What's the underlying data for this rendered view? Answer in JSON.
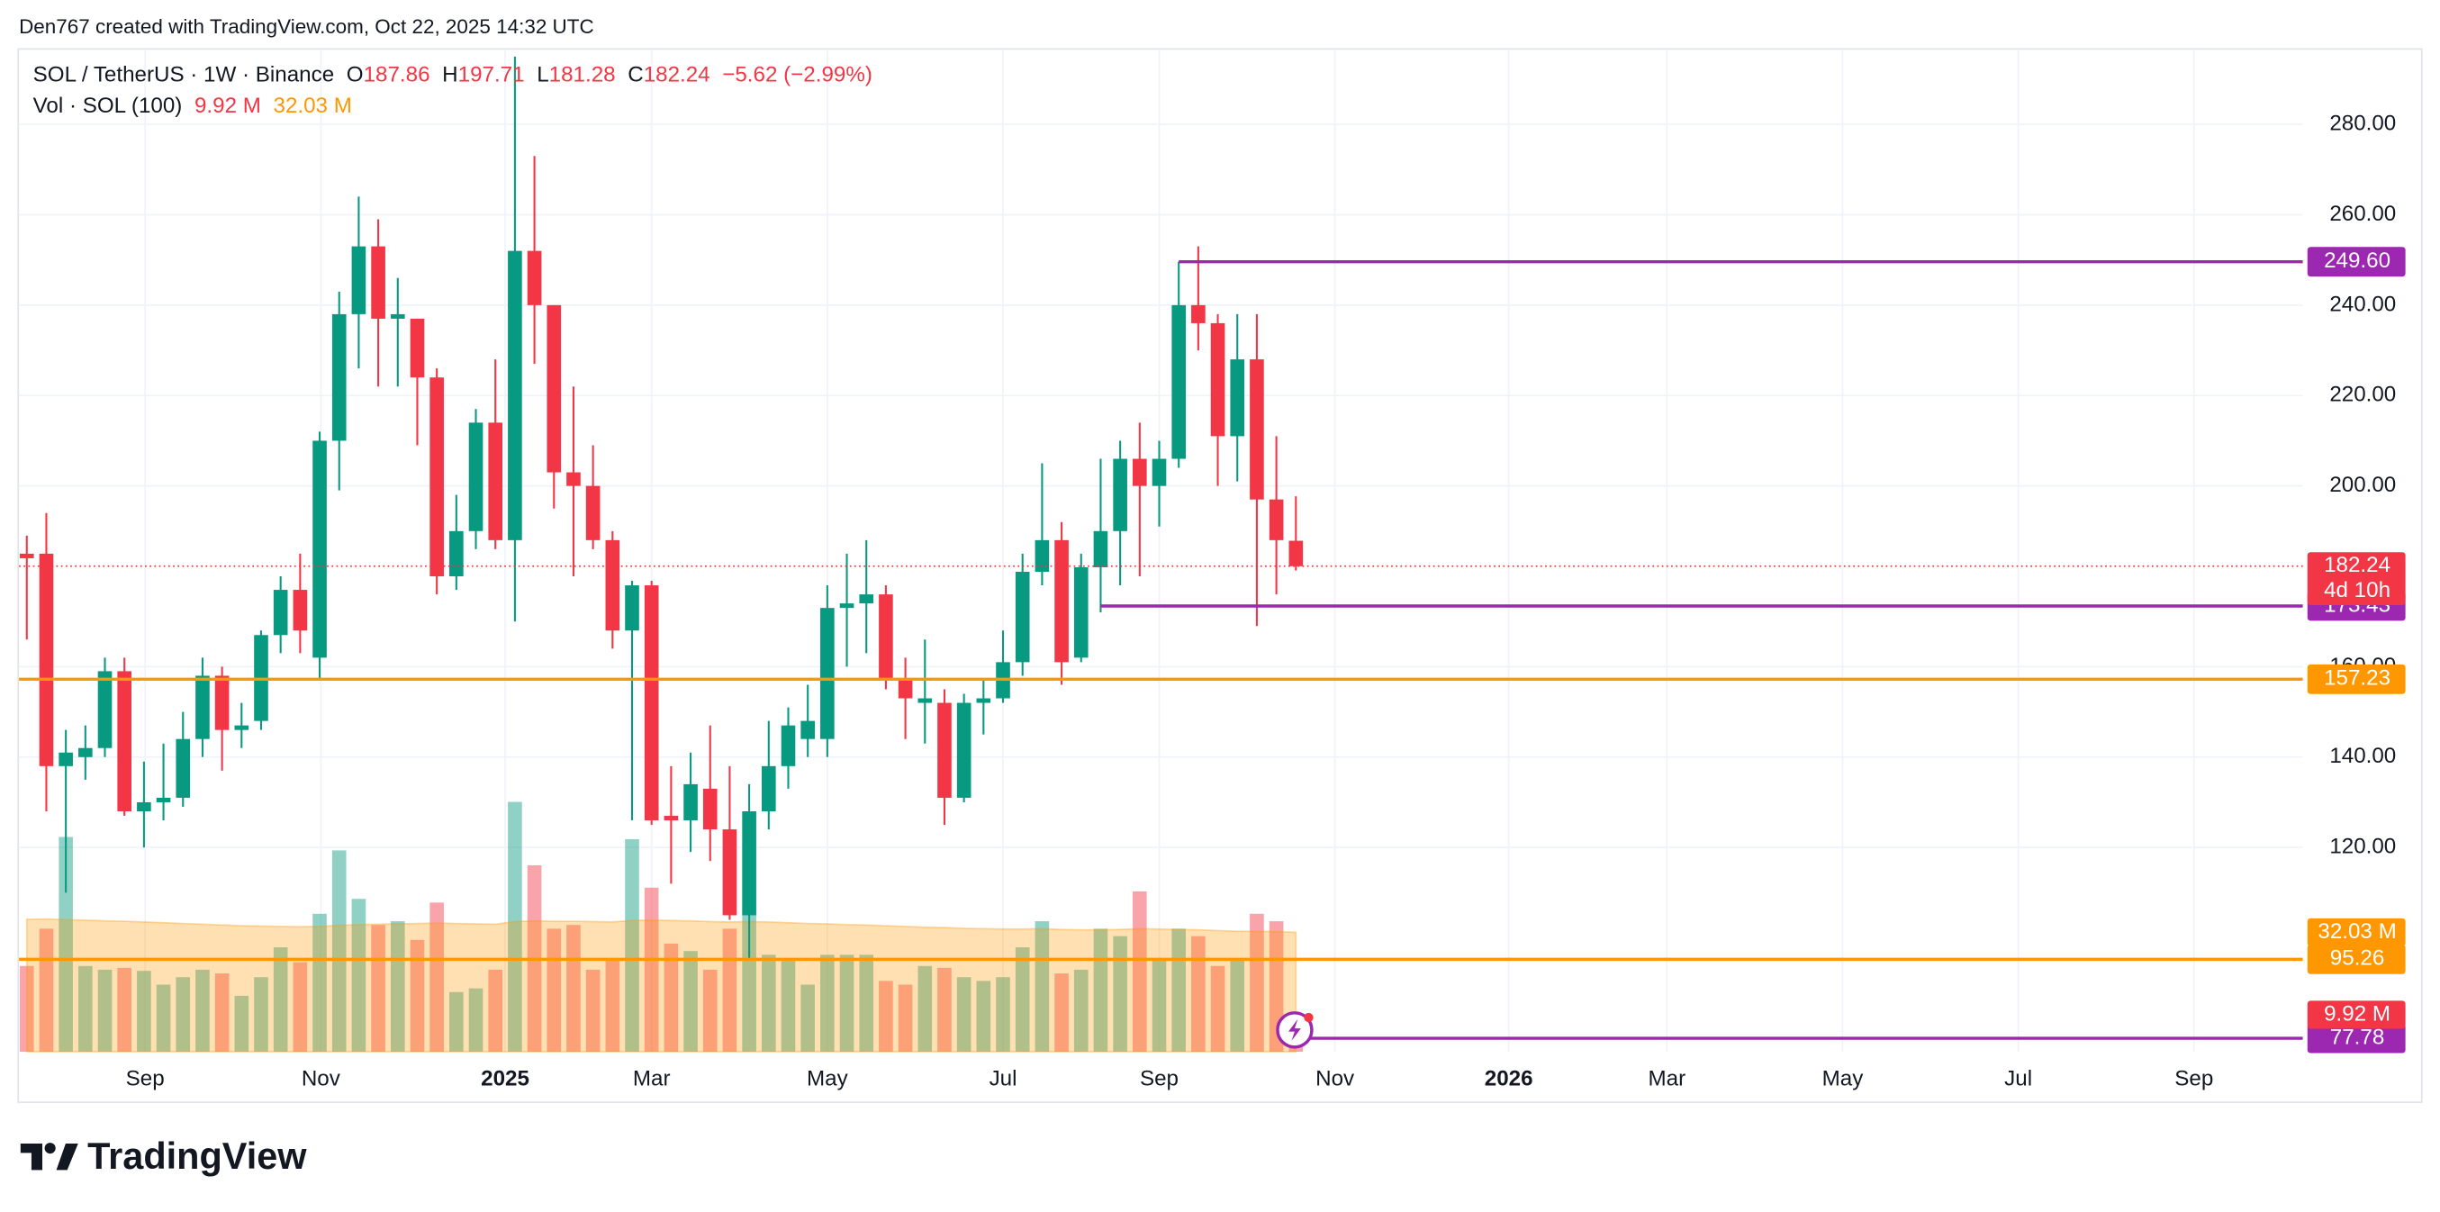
{
  "attribution": "Den767 created with TradingView.com, Oct 22, 2025 14:32 UTC",
  "brand": "TradingView",
  "legend": {
    "symbol": "SOL / TetherUS · 1W · Binance",
    "o_key": "O",
    "o": "187.86",
    "h_key": "H",
    "h": "197.71",
    "l_key": "L",
    "l": "181.28",
    "c_key": "C",
    "c": "182.24",
    "change": "−5.62 (−2.99%)",
    "vol_name": "Vol · SOL (100)",
    "vol": "9.92 M",
    "vol_ma": "32.03 M"
  },
  "chart_data": {
    "type": "candlestick",
    "title": "SOL / TetherUS · 1W · Binance",
    "up_color": "#089981",
    "down_color": "#f23645",
    "open": [
      185,
      185,
      138,
      140,
      142,
      159,
      128,
      130,
      131,
      144,
      158,
      146,
      148,
      167,
      177,
      162,
      210,
      238,
      253,
      237,
      237,
      224,
      180,
      190,
      214,
      188,
      252,
      240,
      203,
      200,
      188,
      168,
      178,
      127,
      126,
      133,
      124,
      105,
      128,
      138,
      144,
      144,
      173,
      174,
      176,
      157,
      152,
      152,
      131,
      152,
      153,
      161,
      181,
      188,
      162,
      182,
      190,
      206,
      200,
      206,
      240,
      236,
      211,
      228,
      197,
      187.86
    ],
    "high": [
      189,
      194,
      146,
      147,
      162,
      162,
      139,
      143,
      150,
      162,
      160,
      152,
      168,
      180,
      185,
      212,
      243,
      264,
      259,
      246,
      237,
      226,
      198,
      217,
      228,
      295,
      273,
      240,
      222,
      209,
      190,
      179,
      179,
      138,
      141,
      147,
      138,
      134,
      148,
      151,
      156,
      178,
      185,
      188,
      178,
      162,
      166,
      155,
      154,
      157,
      168,
      185,
      205,
      192,
      185,
      206,
      210,
      214,
      210,
      249.6,
      253,
      238,
      238,
      238,
      211,
      197.71
    ],
    "low": [
      166,
      128,
      110,
      135,
      140,
      127,
      120,
      126,
      129,
      140,
      137,
      142,
      146,
      163,
      163,
      157,
      199,
      226,
      222,
      222,
      209,
      176,
      177,
      186,
      186,
      170,
      227,
      195,
      180,
      186,
      164,
      126,
      125,
      112,
      119,
      117,
      104,
      95,
      124,
      133,
      140,
      140,
      160,
      163,
      155,
      144,
      143,
      125,
      130,
      145,
      152,
      158,
      178,
      156,
      161,
      172,
      178,
      180,
      191,
      204,
      230,
      200,
      201,
      169,
      176,
      181.28
    ],
    "close": [
      184,
      138,
      141,
      142,
      159,
      128,
      130,
      131,
      144,
      158,
      146,
      147,
      167,
      177,
      168,
      210,
      238,
      253,
      237,
      238,
      224,
      180,
      190,
      214,
      188,
      252,
      240,
      203,
      200,
      188,
      168,
      178,
      126,
      126,
      134,
      124,
      105,
      128,
      138,
      147,
      148,
      173,
      174,
      176,
      157,
      153,
      153,
      131,
      152,
      153,
      161,
      181,
      188,
      161,
      182,
      190,
      206,
      200,
      206,
      240,
      236,
      211,
      228,
      197,
      188,
      182.24
    ],
    "volume": [
      23,
      33,
      57.6,
      23,
      22,
      22.5,
      21.7,
      18,
      20,
      22,
      21,
      15,
      20,
      28,
      24,
      37,
      54,
      41,
      34,
      35,
      30,
      40,
      16,
      17,
      22,
      67,
      50,
      33,
      34,
      22,
      25,
      57,
      44,
      29,
      27,
      22,
      33,
      37,
      26,
      25,
      18,
      26,
      26,
      26,
      19,
      18,
      23,
      22.5,
      20,
      19,
      20,
      28,
      35,
      21,
      22,
      33,
      31,
      43,
      25,
      33,
      31,
      23,
      25,
      37,
      35,
      9.92
    ],
    "volume_last_label": "9.92 M",
    "vol_ma": [
      35.5,
      35.6,
      35.4,
      35.3,
      35.1,
      35.0,
      34.8,
      34.6,
      34.4,
      34.2,
      34.0,
      33.8,
      33.7,
      33.6,
      33.5,
      33.6,
      33.9,
      34.1,
      34.2,
      34.3,
      34.4,
      34.5,
      34.4,
      34.3,
      34.2,
      34.9,
      35.1,
      35.0,
      35.0,
      34.9,
      34.8,
      35.2,
      35.3,
      35.2,
      35.1,
      34.9,
      34.8,
      34.9,
      34.8,
      34.6,
      34.4,
      34.3,
      34.1,
      34.0,
      33.8,
      33.6,
      33.4,
      33.3,
      33.1,
      33.0,
      32.9,
      32.9,
      33.0,
      32.8,
      32.7,
      32.7,
      32.8,
      33.0,
      32.9,
      32.8,
      32.7,
      32.5,
      32.3,
      32.3,
      32.2,
      32.03
    ],
    "vol_ma_last_label": "32.03 M",
    "vol_ma_color": "#ff9800",
    "vlim": [
      0,
      268.7
    ],
    "ylim": [
      74.8,
      296.5
    ],
    "yticks": [
      {
        "value": 280,
        "label": "280.00"
      },
      {
        "value": 260,
        "label": "260.00"
      },
      {
        "value": 240,
        "label": "240.00"
      },
      {
        "value": 220,
        "label": "220.00"
      },
      {
        "value": 200,
        "label": "200.00"
      },
      {
        "value": 160,
        "label": "160.00"
      },
      {
        "value": 140,
        "label": "140.00"
      },
      {
        "value": 120,
        "label": "120.00"
      }
    ],
    "xlim": [
      -0.4,
      116.57
    ],
    "xticks": [
      {
        "value": 6.06,
        "label": "Sep"
      },
      {
        "value": 15.06,
        "label": "Nov"
      },
      {
        "value": 24.5,
        "label": "2025",
        "bold": true
      },
      {
        "value": 32.0,
        "label": "Mar"
      },
      {
        "value": 41.0,
        "label": "May"
      },
      {
        "value": 50.0,
        "label": "Jul"
      },
      {
        "value": 58.0,
        "label": "Sep"
      },
      {
        "value": 67.0,
        "label": "Nov"
      },
      {
        "value": 75.9,
        "label": "2026",
        "bold": true
      },
      {
        "value": 84.0,
        "label": "Mar"
      },
      {
        "value": 93.0,
        "label": "May"
      },
      {
        "value": 102.0,
        "label": "Jul"
      },
      {
        "value": 111.0,
        "label": "Sep"
      }
    ],
    "grid": true,
    "levels": [
      {
        "value": 249.6,
        "label": "249.60",
        "color": "#9c27b0",
        "x_start": 59
      },
      {
        "value": 173.43,
        "label": "173.43",
        "color": "#9c27b0",
        "x_start": 55
      },
      {
        "value": 157.23,
        "label": "157.23",
        "color": "#ff9800"
      },
      {
        "value": 95.26,
        "label": "95.26",
        "color": "#ff9800"
      },
      {
        "value": 77.78,
        "label": "77.78",
        "color": "#9c27b0",
        "x_start": 65.7
      }
    ],
    "last_price": {
      "value": 182.24,
      "label": "182.24",
      "countdown": "4d 10h",
      "color": "#f23645"
    }
  }
}
